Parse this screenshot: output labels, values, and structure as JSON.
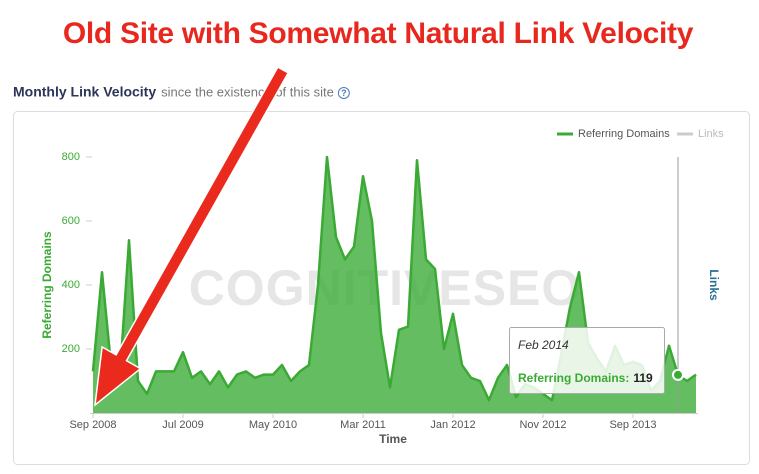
{
  "header": {
    "title": "Old Site with Somewhat Natural Link Velocity",
    "subtitle": "Monthly Link Velocity",
    "subtitle_note": "since the existence of this site",
    "help_icon": "?"
  },
  "chart_data": {
    "type": "area",
    "categories": [
      "Sep 2008",
      null,
      null,
      null,
      null,
      null,
      null,
      null,
      null,
      null,
      "Jul 2009",
      null,
      null,
      null,
      null,
      null,
      null,
      null,
      null,
      null,
      "May 2010",
      null,
      null,
      null,
      null,
      null,
      null,
      null,
      null,
      null,
      "Mar 2011",
      null,
      null,
      null,
      null,
      null,
      null,
      null,
      null,
      null,
      "Jan 2012",
      null,
      null,
      null,
      null,
      null,
      null,
      null,
      null,
      null,
      "Nov 2012",
      null,
      null,
      null,
      null,
      null,
      null,
      null,
      null,
      null,
      "Sep 2013",
      null,
      null,
      null,
      null,
      null,
      null,
      null
    ],
    "series": [
      {
        "name": "Referring Domains",
        "color": "#3aaa35",
        "values": [
          130,
          440,
          150,
          120,
          540,
          100,
          60,
          130,
          130,
          130,
          190,
          110,
          130,
          90,
          130,
          80,
          120,
          130,
          110,
          120,
          120,
          150,
          100,
          130,
          150,
          400,
          800,
          550,
          480,
          520,
          740,
          600,
          250,
          80,
          260,
          270,
          790,
          480,
          450,
          200,
          310,
          150,
          110,
          100,
          40,
          110,
          150,
          50,
          90,
          80,
          60,
          40,
          180,
          330,
          440,
          220,
          170,
          130,
          210,
          150,
          160,
          150,
          70,
          100,
          210,
          119,
          100,
          120
        ]
      },
      {
        "name": "Links",
        "color": "#cccccc"
      }
    ],
    "ylim": [
      0,
      800
    ],
    "yticks": [
      200,
      400,
      600,
      800
    ],
    "y_label": "Referring Domains",
    "y2_label": "Links",
    "x_label": "Time",
    "watermark": "COGNITIVESEO",
    "tooltip": {
      "date": "Feb 2014",
      "label": "Referring Domains:"
    }
  }
}
